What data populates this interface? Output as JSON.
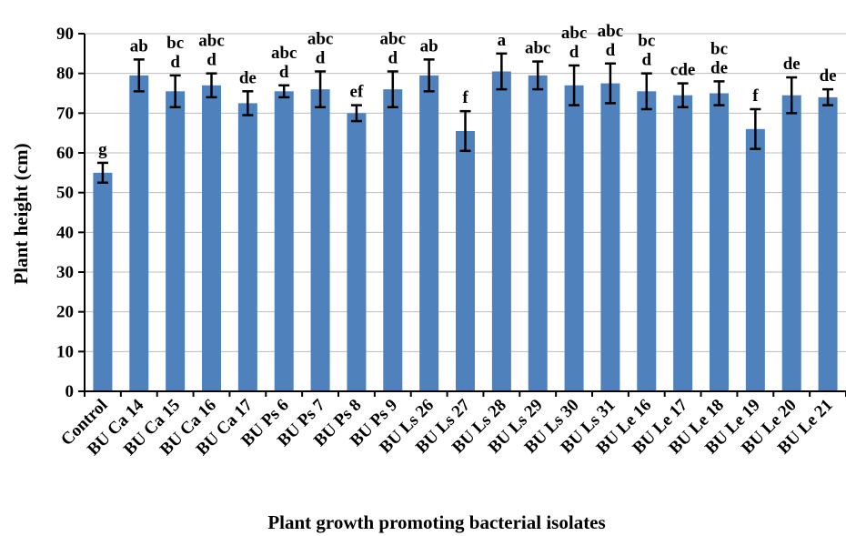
{
  "chart_data": {
    "type": "bar",
    "xlabel": "Plant growth promoting bacterial isolates",
    "ylabel": "Plant height (cm)",
    "ylim": [
      0,
      90
    ],
    "yticks": [
      0,
      10,
      20,
      30,
      40,
      50,
      60,
      70,
      80,
      90
    ],
    "grid": "horizontal",
    "bar_color": "#4f81bd",
    "categories": [
      "Control",
      "BU Ca 14",
      "BU Ca 15",
      "BU Ca 16",
      "BU Ca 17",
      "BU Ps 6",
      "BU Ps 7",
      "BU Ps 8",
      "BU Ps 9",
      "BU Ls 26",
      "BU Ls 27",
      "BU Ls 28",
      "BU Ls 29",
      "BU Ls 30",
      "BU Ls 31",
      "BU Le 16",
      "BU Le 17",
      "BU Le 18",
      "BU Le 19",
      "BU Le 20",
      "BU Le 21"
    ],
    "values": [
      55,
      79.5,
      75.5,
      77,
      72.5,
      75.5,
      76,
      70,
      76,
      79.5,
      65.5,
      80.5,
      79.5,
      77,
      77.5,
      75.5,
      74.5,
      75,
      66,
      74.5,
      74
    ],
    "errors": [
      2.5,
      4,
      4,
      3,
      3,
      1.5,
      4.5,
      2,
      4.5,
      4,
      5,
      4.5,
      3.5,
      5,
      5,
      4.5,
      3,
      3,
      5,
      4.5,
      2
    ],
    "annotations": [
      [
        "g"
      ],
      [
        "ab"
      ],
      [
        "bc",
        "d"
      ],
      [
        "abc",
        "d"
      ],
      [
        "de"
      ],
      [
        "abc",
        "d"
      ],
      [
        "abc",
        "d"
      ],
      [
        "ef"
      ],
      [
        "abc",
        "d"
      ],
      [
        "ab"
      ],
      [
        "f"
      ],
      [
        "a"
      ],
      [
        "abc"
      ],
      [
        "abc",
        "d"
      ],
      [
        "abc",
        "d"
      ],
      [
        "bc",
        "d"
      ],
      [
        "cde"
      ],
      [
        "bc",
        "de"
      ],
      [
        "f"
      ],
      [
        "de"
      ],
      [
        "de"
      ]
    ]
  }
}
